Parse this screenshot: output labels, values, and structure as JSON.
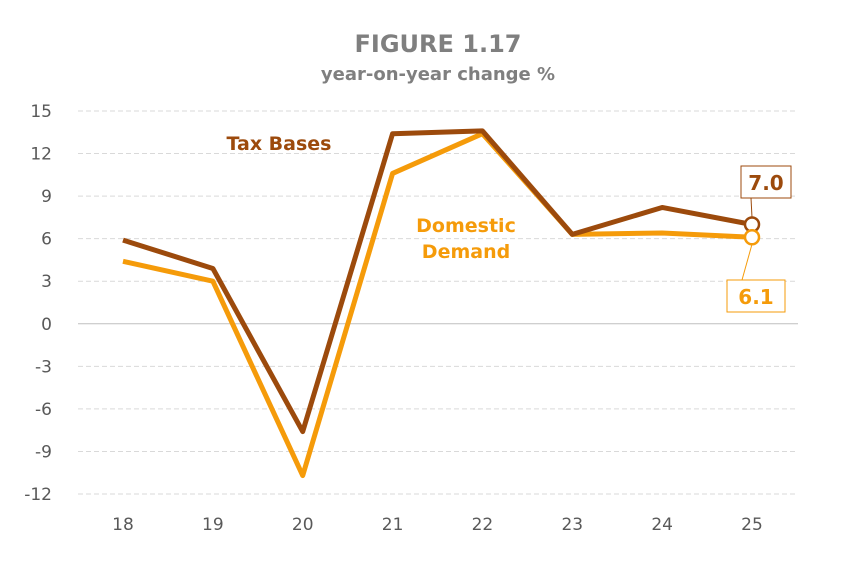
{
  "chart_data": {
    "type": "line",
    "title": "FIGURE 1.17",
    "subtitle": "year-on-year change %",
    "xlabel": "",
    "ylabel": "",
    "categories": [
      "18",
      "19",
      "20",
      "21",
      "22",
      "23",
      "24",
      "25"
    ],
    "ylim": [
      -12,
      15
    ],
    "yticks": [
      "15",
      "12",
      "9",
      "6",
      "3",
      "0",
      "-3",
      "-6",
      "-9",
      "-12"
    ],
    "ytick_values": [
      15,
      12,
      9,
      6,
      3,
      0,
      -3,
      -6,
      -9,
      -12
    ],
    "grid": true,
    "series": [
      {
        "name": "Tax Bases",
        "label_lines": [
          "Tax Bases"
        ],
        "color": "#9C4A0C",
        "values": [
          5.9,
          3.9,
          -7.6,
          13.4,
          13.6,
          6.3,
          8.2,
          7.0
        ],
        "end_label": "7.0"
      },
      {
        "name": "Domestic Demand",
        "label_lines": [
          "Domestic",
          "Demand"
        ],
        "color": "#F59B0A",
        "values": [
          4.4,
          3.0,
          -10.7,
          10.6,
          13.4,
          6.3,
          6.4,
          6.1
        ],
        "end_label": "6.1"
      }
    ]
  }
}
